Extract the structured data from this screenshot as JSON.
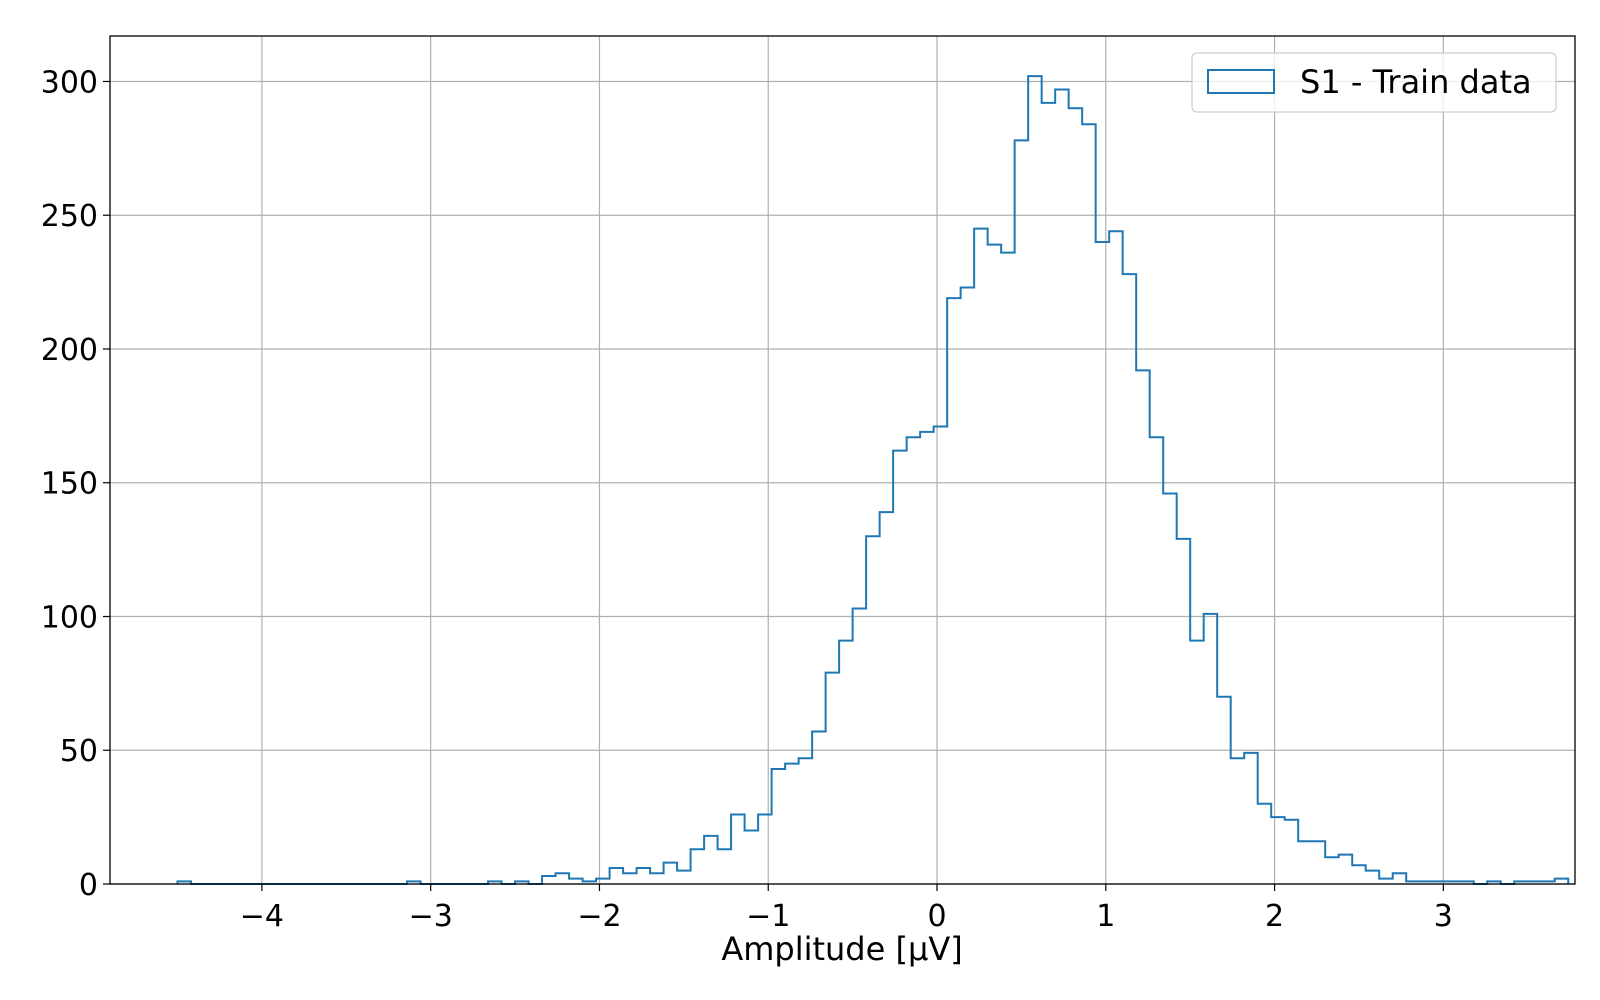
{
  "chart_data": {
    "type": "histogram",
    "xlabel": "Amplitude [μV]",
    "ylabel": "",
    "title": "",
    "xlim": [
      -4.9,
      3.78
    ],
    "ylim": [
      0,
      317
    ],
    "xticks": [
      -4,
      -3,
      -2,
      -1,
      0,
      1,
      2,
      3
    ],
    "xtick_labels": [
      "−4",
      "−3",
      "−2",
      "−1",
      "0",
      "1",
      "2",
      "3"
    ],
    "yticks": [
      0,
      50,
      100,
      150,
      200,
      250,
      300
    ],
    "ytick_labels": [
      "0",
      "50",
      "100",
      "150",
      "200",
      "250",
      "300"
    ],
    "grid": true,
    "legend_position": "top-right",
    "series": [
      {
        "name": "S1 - Train data",
        "color": "#1f77b4",
        "bin_start": -4.5,
        "bin_width": 0.08,
        "counts": [
          1,
          0,
          0,
          0,
          0,
          0,
          0,
          0,
          0,
          0,
          0,
          0,
          0,
          0,
          0,
          0,
          0,
          1,
          0,
          0,
          0,
          0,
          0,
          1,
          0,
          1,
          0,
          3,
          4,
          2,
          1,
          2,
          6,
          4,
          6,
          4,
          8,
          5,
          13,
          18,
          13,
          26,
          20,
          26,
          43,
          45,
          47,
          57,
          79,
          91,
          103,
          130,
          139,
          162,
          167,
          169,
          171,
          219,
          223,
          245,
          239,
          236,
          278,
          302,
          292,
          297,
          290,
          284,
          240,
          244,
          228,
          192,
          167,
          146,
          129,
          91,
          101,
          70,
          47,
          49,
          30,
          25,
          24,
          16,
          16,
          10,
          11,
          7,
          5,
          2,
          4,
          1,
          1,
          1,
          1,
          1,
          0,
          1,
          0,
          1,
          1,
          1,
          2
        ]
      }
    ]
  }
}
